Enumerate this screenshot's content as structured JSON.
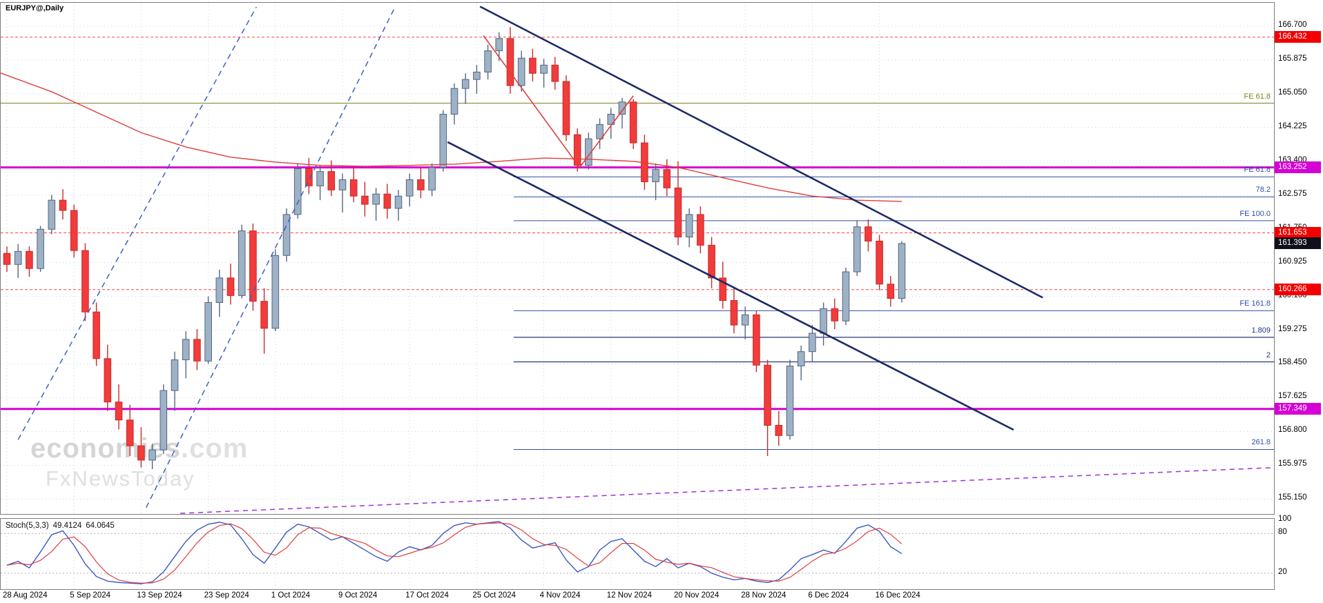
{
  "window": {
    "symbol_label": "EURJPY@,Daily"
  },
  "watermark": {
    "line1_bold": "economies",
    "line1_rest": ".com",
    "line2": "FxNewsToday"
  },
  "price_axis": {
    "labels": [
      "166.700",
      "165.875",
      "165.050",
      "164.225",
      "163.400",
      "162.575",
      "161.750",
      "160.925",
      "160.100",
      "159.275",
      "158.450",
      "157.625",
      "156.800",
      "155.975",
      "155.150"
    ]
  },
  "badges": [
    {
      "text": "166.432",
      "price": 166.432,
      "bg": "#f20000"
    },
    {
      "text": "163.252",
      "price": 163.252,
      "bg": "#d400d4"
    },
    {
      "text": "161.653",
      "price": 161.653,
      "bg": "#f20000"
    },
    {
      "text": "161.393",
      "price": 161.393,
      "bg": "#10101c"
    },
    {
      "text": "160.266",
      "price": 160.266,
      "bg": "#f20000"
    },
    {
      "text": "157.349",
      "price": 157.349,
      "bg": "#d400d4"
    }
  ],
  "date_axis": {
    "labels": [
      "28 Aug 2024",
      "5 Sep 2024",
      "13 Sep 2024",
      "23 Sep 2024",
      "1 Oct 2024",
      "9 Oct 2024",
      "17 Oct 2024",
      "25 Oct 2024",
      "4 Nov 2024",
      "12 Nov 2024",
      "20 Nov 2024",
      "28 Nov 2024",
      "6 Dec 2024",
      "16 Dec 2024"
    ],
    "indices": [
      0,
      6,
      12,
      18,
      24,
      30,
      36,
      42,
      48,
      54,
      60,
      66,
      72,
      78
    ]
  },
  "chart_data": {
    "type": "candlestick",
    "symbol": "EURJPY",
    "timeframe": "Daily",
    "ylim": [
      155.15,
      166.7
    ],
    "grid_step": 0.825,
    "last_price": "161.393",
    "candles": [
      [
        161.15,
        161.32,
        160.7,
        160.88
      ],
      [
        160.88,
        161.38,
        160.55,
        161.2
      ],
      [
        161.2,
        161.32,
        160.58,
        160.78
      ],
      [
        160.78,
        161.82,
        160.7,
        161.74
      ],
      [
        161.74,
        162.58,
        161.62,
        162.45
      ],
      [
        162.45,
        162.72,
        161.98,
        162.2
      ],
      [
        162.2,
        162.34,
        161.05,
        161.22
      ],
      [
        161.22,
        161.4,
        159.5,
        159.72
      ],
      [
        159.72,
        159.95,
        158.4,
        158.58
      ],
      [
        158.58,
        158.92,
        157.3,
        157.52
      ],
      [
        157.52,
        157.95,
        156.85,
        157.08
      ],
      [
        157.08,
        157.45,
        156.2,
        156.45
      ],
      [
        156.45,
        156.9,
        155.92,
        156.1
      ],
      [
        156.1,
        156.5,
        155.88,
        156.35
      ],
      [
        156.35,
        157.95,
        156.25,
        157.8
      ],
      [
        157.8,
        158.75,
        157.3,
        158.55
      ],
      [
        158.55,
        159.25,
        158.1,
        159.05
      ],
      [
        159.05,
        159.3,
        158.3,
        158.52
      ],
      [
        158.52,
        160.1,
        158.45,
        159.95
      ],
      [
        159.95,
        160.75,
        159.6,
        160.55
      ],
      [
        160.55,
        160.9,
        159.9,
        160.12
      ],
      [
        160.12,
        161.85,
        160.05,
        161.7
      ],
      [
        161.7,
        161.88,
        159.75,
        159.98
      ],
      [
        159.98,
        160.3,
        158.7,
        159.32
      ],
      [
        159.32,
        161.25,
        159.25,
        161.1
      ],
      [
        161.1,
        162.25,
        160.95,
        162.1
      ],
      [
        162.1,
        163.35,
        162.0,
        163.22
      ],
      [
        163.22,
        163.48,
        162.6,
        162.8
      ],
      [
        162.8,
        163.3,
        162.45,
        163.15
      ],
      [
        163.15,
        163.42,
        162.55,
        162.7
      ],
      [
        162.7,
        163.1,
        162.15,
        162.95
      ],
      [
        162.95,
        163.25,
        162.4,
        162.55
      ],
      [
        162.55,
        162.9,
        162.05,
        162.35
      ],
      [
        162.35,
        162.75,
        161.95,
        162.6
      ],
      [
        162.6,
        162.85,
        162.0,
        162.25
      ],
      [
        162.25,
        162.7,
        161.95,
        162.55
      ],
      [
        162.55,
        163.1,
        162.3,
        162.95
      ],
      [
        162.95,
        163.25,
        162.5,
        162.7
      ],
      [
        162.7,
        163.35,
        162.55,
        163.25
      ],
      [
        163.25,
        164.65,
        163.15,
        164.55
      ],
      [
        164.55,
        165.3,
        164.3,
        165.18
      ],
      [
        165.18,
        165.55,
        164.8,
        165.4
      ],
      [
        165.4,
        165.75,
        165.05,
        165.58
      ],
      [
        165.58,
        166.25,
        165.4,
        166.1
      ],
      [
        166.1,
        166.55,
        165.85,
        166.4
      ],
      [
        166.4,
        166.68,
        165.05,
        165.25
      ],
      [
        165.25,
        166.1,
        165.1,
        165.92
      ],
      [
        165.92,
        166.15,
        165.35,
        165.55
      ],
      [
        165.55,
        165.9,
        165.2,
        165.75
      ],
      [
        165.75,
        165.95,
        165.15,
        165.35
      ],
      [
        165.35,
        165.5,
        163.9,
        164.05
      ],
      [
        164.05,
        164.2,
        163.15,
        163.3
      ],
      [
        163.3,
        164.1,
        163.2,
        163.95
      ],
      [
        163.95,
        164.45,
        163.7,
        164.3
      ],
      [
        164.3,
        164.7,
        163.95,
        164.55
      ],
      [
        164.55,
        164.95,
        164.2,
        164.85
      ],
      [
        164.85,
        164.92,
        163.7,
        163.85
      ],
      [
        163.85,
        164.05,
        162.7,
        162.9
      ],
      [
        162.9,
        163.35,
        162.45,
        163.2
      ],
      [
        163.2,
        163.45,
        162.55,
        162.75
      ],
      [
        162.75,
        163.4,
        161.35,
        161.55
      ],
      [
        161.55,
        162.25,
        161.3,
        162.1
      ],
      [
        162.1,
        162.3,
        161.15,
        161.35
      ],
      [
        161.35,
        161.55,
        160.3,
        160.55
      ],
      [
        160.55,
        160.95,
        159.8,
        160.0
      ],
      [
        160.0,
        160.3,
        159.2,
        159.4
      ],
      [
        159.4,
        159.85,
        159.05,
        159.65
      ],
      [
        159.65,
        159.75,
        158.25,
        158.42
      ],
      [
        158.42,
        158.55,
        156.2,
        156.95
      ],
      [
        156.95,
        157.3,
        156.45,
        156.7
      ],
      [
        156.7,
        158.55,
        156.6,
        158.4
      ],
      [
        158.4,
        158.9,
        158.05,
        158.75
      ],
      [
        158.75,
        159.4,
        158.5,
        159.2
      ],
      [
        159.2,
        159.95,
        158.9,
        159.8
      ],
      [
        159.8,
        160.05,
        159.3,
        159.5
      ],
      [
        159.5,
        160.8,
        159.4,
        160.7
      ],
      [
        160.7,
        161.95,
        160.6,
        161.8
      ],
      [
        161.8,
        161.98,
        161.2,
        161.45
      ],
      [
        161.45,
        161.6,
        160.25,
        160.4
      ],
      [
        160.4,
        160.6,
        159.85,
        160.05
      ],
      [
        160.05,
        161.45,
        159.95,
        161.393
      ]
    ],
    "ma_line": [
      [
        -0.6,
        165.56
      ],
      [
        0,
        165.5
      ],
      [
        4,
        165.1
      ],
      [
        8,
        164.6
      ],
      [
        12,
        164.1
      ],
      [
        16,
        163.75
      ],
      [
        20,
        163.5
      ],
      [
        24,
        163.38
      ],
      [
        28,
        163.3
      ],
      [
        32,
        163.28
      ],
      [
        36,
        163.3
      ],
      [
        40,
        163.33
      ],
      [
        44,
        163.4
      ],
      [
        48,
        163.48
      ],
      [
        52,
        163.45
      ],
      [
        56,
        163.4
      ],
      [
        60,
        163.25
      ],
      [
        64,
        163.0
      ],
      [
        68,
        162.75
      ],
      [
        72,
        162.55
      ],
      [
        76,
        162.45
      ],
      [
        80,
        162.42
      ]
    ],
    "fib_start_index": 45.3,
    "levels": [
      {
        "price": 166.432,
        "color": "#ff4040",
        "width": 1,
        "dash": "4,3",
        "span": "full"
      },
      {
        "price": 164.82,
        "label": "FE 61.8",
        "color": "#7f7f1f",
        "width": 1,
        "dash": "",
        "span": "full",
        "label_color": "#7f7f1f"
      },
      {
        "price": 163.252,
        "color": "#d400d4",
        "width": 3,
        "dash": "",
        "span": "full"
      },
      {
        "price": 163.02,
        "label": "FE 61.8",
        "color": "#2e4fa3",
        "width": 1,
        "dash": "",
        "span": "fib",
        "label_color": "#2e4fa3"
      },
      {
        "price": 162.53,
        "label": "78.2",
        "color": "#2e4fa3",
        "width": 1,
        "dash": "",
        "span": "fib",
        "label_color": "#2e4fa3"
      },
      {
        "price": 161.95,
        "label": "FE 100.0",
        "color": "#2e4fa3",
        "width": 1,
        "dash": "",
        "span": "fib",
        "label_color": "#2e4fa3"
      },
      {
        "price": 161.653,
        "color": "#ff4040",
        "width": 1,
        "dash": "4,3",
        "span": "full"
      },
      {
        "price": 160.266,
        "color": "#ff4040",
        "width": 1,
        "dash": "4,3",
        "span": "full"
      },
      {
        "price": 159.75,
        "label": "FE 161.8",
        "color": "#2e4fa3",
        "width": 1,
        "dash": "",
        "span": "fib",
        "label_color": "#2e4fa3"
      },
      {
        "price": 159.1,
        "label": "1.809",
        "color": "#24357e",
        "width": 1.3,
        "dash": "",
        "span": "fib",
        "label_color": "#24357e"
      },
      {
        "price": 158.5,
        "label": "2",
        "color": "#24357e",
        "width": 1.3,
        "dash": "",
        "span": "fib",
        "label_color": "#24357e"
      },
      {
        "price": 157.349,
        "color": "#d400d4",
        "width": 3,
        "dash": "",
        "span": "full"
      },
      {
        "price": 156.36,
        "label": "261.8",
        "color": "#2e4fa3",
        "width": 1,
        "dash": "",
        "span": "fib",
        "label_color": "#2e4fa3"
      }
    ],
    "trend_lines": [
      {
        "name": "descending-channel-upper",
        "points": [
          [
            42.3,
            167.18
          ],
          [
            92.6,
            160.07
          ]
        ],
        "color": "#1c2a66",
        "width": 2.6,
        "dash": ""
      },
      {
        "name": "descending-channel-lower",
        "points": [
          [
            39.4,
            163.87
          ],
          [
            90.0,
            156.84
          ]
        ],
        "color": "#1c2a66",
        "width": 2.6,
        "dash": ""
      },
      {
        "name": "ascending-dashed-upper",
        "points": [
          [
            1.0,
            156.6
          ],
          [
            22.3,
            167.17
          ]
        ],
        "color": "#3b5ec4",
        "width": 1.5,
        "dash": "8,6"
      },
      {
        "name": "ascending-dashed-lower",
        "points": [
          [
            12.45,
            154.94
          ],
          [
            34.7,
            167.17
          ]
        ],
        "color": "#3b5ec4",
        "width": 1.5,
        "dash": "8,6"
      },
      {
        "name": "rising-support-dashed",
        "points": [
          [
            15.5,
            154.8
          ],
          [
            113.5,
            155.92
          ]
        ],
        "color": "#9b30d9",
        "width": 1.5,
        "dash": "7,6"
      },
      {
        "name": "correction-zigzag",
        "points": [
          [
            42.6,
            166.47
          ],
          [
            51.2,
            163.25
          ],
          [
            56.0,
            165.0
          ]
        ],
        "color": "#e03c3c",
        "width": 1.6,
        "dash": ""
      }
    ],
    "colors": {
      "bull_fill": "#9db1c7",
      "bull_stroke": "#54667c",
      "bear_fill": "#f23b3b",
      "bear_stroke": "#c52a2a",
      "ma": "#e03c3c",
      "grid": "#c4d4e8",
      "border": "#7d7d7d",
      "stoch_main": "#3a57c4",
      "stoch_signal": "#e03c3c"
    },
    "stoch": {
      "label": "Stoch(5,3,3)",
      "main_display": "49.4124",
      "signal_display": "64.0645",
      "scale_labels": [
        "100",
        "80",
        "20"
      ],
      "scale_values": [
        100,
        80,
        20
      ],
      "dotted_levels": [
        80,
        20
      ],
      "main": [
        32,
        38,
        28,
        52,
        78,
        84,
        62,
        34,
        15,
        8,
        6,
        5,
        4,
        7,
        22,
        45,
        68,
        85,
        94,
        97,
        93,
        72,
        48,
        35,
        58,
        82,
        94,
        90,
        80,
        70,
        75,
        65,
        55,
        45,
        38,
        52,
        60,
        55,
        62,
        80,
        92,
        96,
        94,
        96,
        98,
        88,
        70,
        58,
        62,
        66,
        40,
        22,
        30,
        55,
        68,
        72,
        55,
        38,
        30,
        42,
        28,
        35,
        30,
        20,
        14,
        10,
        12,
        8,
        6,
        10,
        25,
        42,
        48,
        55,
        50,
        68,
        88,
        93,
        83,
        60,
        49.41
      ]
    }
  }
}
